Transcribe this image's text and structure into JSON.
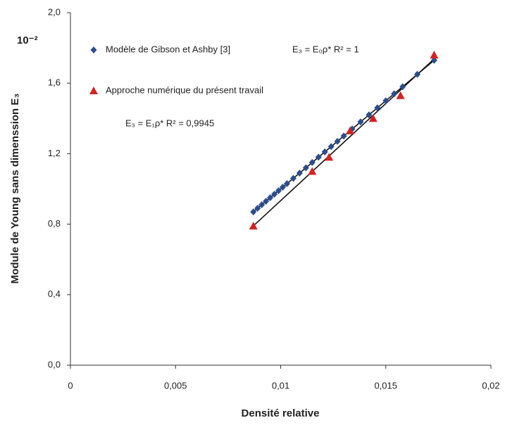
{
  "chart_data": {
    "type": "scatter",
    "xlabel": "Densité relative",
    "ylabel": "Module de Young sans dimenssion E₃",
    "y_multiplier": "10⁻²",
    "xlim": [
      0,
      0.02
    ],
    "xticks": [
      0,
      {
        "value": 0.005,
        "label": "0,005"
      },
      {
        "value": 0.01,
        "label": "0,01"
      },
      {
        "value": 0.015,
        "label": "0,015"
      },
      {
        "value": 0.02,
        "label": "0,02"
      }
    ],
    "ylim": [
      0,
      2.0
    ],
    "yticks": [
      {
        "value": 0,
        "label": "0,0"
      },
      {
        "value": 0.4,
        "label": "0,4"
      },
      {
        "value": 0.8,
        "label": "0,8"
      },
      {
        "value": 1.2,
        "label": "1,2"
      },
      {
        "value": 1.6,
        "label": "1,6"
      },
      {
        "value": 2.0,
        "label": "2,0"
      }
    ],
    "grid": false,
    "trendline": true,
    "series": [
      {
        "name": "Modèle de Gibson et Ashby [3]",
        "color": "#2b4d8c",
        "marker": "diamond",
        "x": [
          0.0087,
          0.0089,
          0.0091,
          0.0093,
          0.0095,
          0.0097,
          0.0099,
          0.0101,
          0.0103,
          0.0106,
          0.0109,
          0.0112,
          0.0115,
          0.0118,
          0.0121,
          0.0124,
          0.0127,
          0.013,
          0.0134,
          0.0138,
          0.0142,
          0.0146,
          0.015,
          0.0154,
          0.0158,
          0.0165,
          0.0173
        ],
        "values": [
          0.87,
          0.89,
          0.91,
          0.93,
          0.95,
          0.97,
          0.99,
          1.01,
          1.03,
          1.06,
          1.09,
          1.12,
          1.15,
          1.18,
          1.21,
          1.24,
          1.27,
          1.3,
          1.34,
          1.38,
          1.42,
          1.46,
          1.5,
          1.54,
          1.58,
          1.65,
          1.73
        ]
      },
      {
        "name": "Approche numérique du présent travail",
        "color": "#d42222",
        "marker": "triangle",
        "x": [
          0.0087,
          0.0115,
          0.0123,
          0.0133,
          0.0144,
          0.0157,
          0.0173
        ],
        "values": [
          0.79,
          1.1,
          1.18,
          1.33,
          1.4,
          1.53,
          1.76
        ]
      }
    ],
    "annotations": [
      "E₃ = E₀ρ*      R² = 1",
      "E₃ = E₁ρ*  R² = 0,9945"
    ]
  }
}
